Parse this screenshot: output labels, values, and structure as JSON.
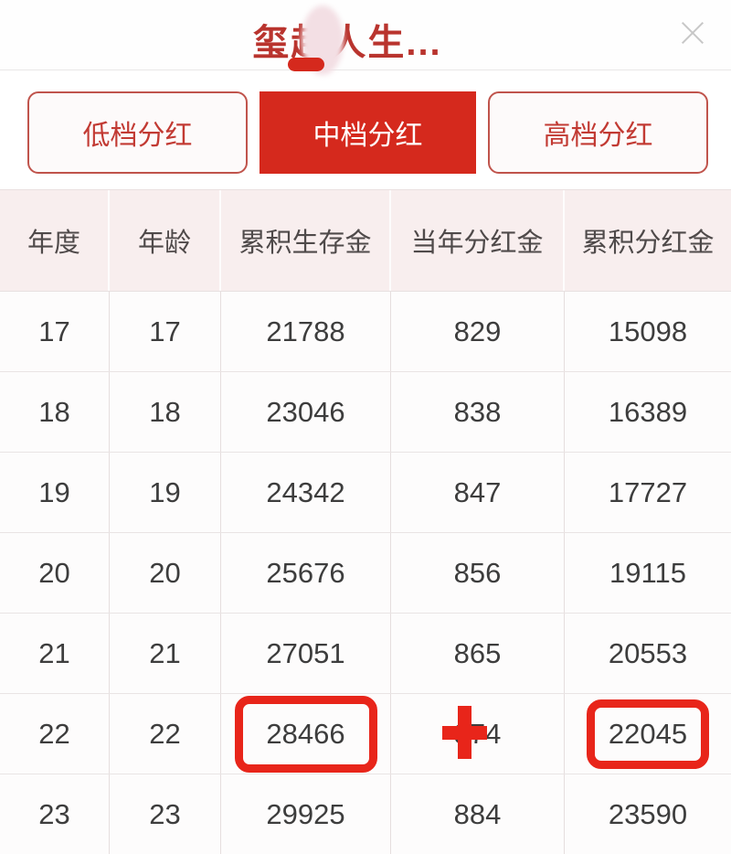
{
  "window": {
    "title": "玺越人生...",
    "close_icon": "close-x"
  },
  "tabs": [
    {
      "label": "低档分红",
      "selected": false
    },
    {
      "label": "中档分红",
      "selected": true
    },
    {
      "label": "高档分红",
      "selected": false
    }
  ],
  "table": {
    "headers": [
      "年度",
      "年龄",
      "累积生存金",
      "当年分红金",
      "累积分红金"
    ],
    "rows": [
      [
        "17",
        "17",
        "21788",
        "829",
        "15098"
      ],
      [
        "18",
        "18",
        "23046",
        "838",
        "16389"
      ],
      [
        "19",
        "19",
        "24342",
        "847",
        "17727"
      ],
      [
        "20",
        "20",
        "25676",
        "856",
        "19115"
      ],
      [
        "21",
        "21",
        "27051",
        "865",
        "20553"
      ],
      [
        "22",
        "22",
        "28466",
        "874",
        "22045"
      ],
      [
        "23",
        "23",
        "29925",
        "884",
        "23590"
      ]
    ],
    "annotations": {
      "circled": [
        {
          "row_index": 5,
          "col_index": 2,
          "value": "28466"
        },
        {
          "row_index": 5,
          "col_index": 4,
          "value": "22045"
        }
      ],
      "plus_marker": {
        "row_index": 5,
        "col_index": 3,
        "value": "874"
      }
    }
  },
  "colors": {
    "brand_red": "#d5291d",
    "title_red": "#b9342e",
    "annotation_red": "#e8251a",
    "header_bg": "#f8eeee"
  }
}
